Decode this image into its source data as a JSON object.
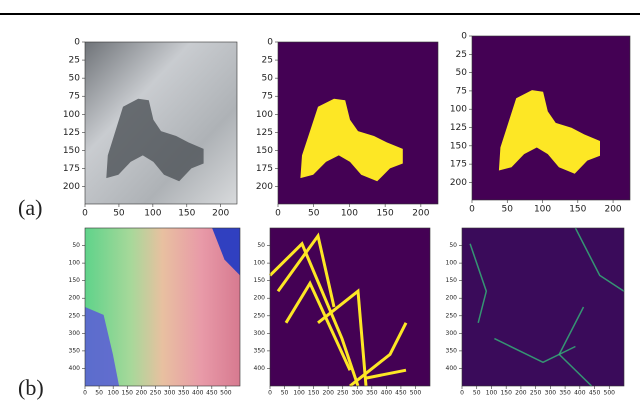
{
  "rows": [
    {
      "label": "(a)",
      "yticks": [
        0,
        25,
        50,
        75,
        100,
        125,
        150,
        175,
        200
      ],
      "xticks": [
        0,
        50,
        100,
        150,
        200
      ]
    },
    {
      "label": "(b)",
      "yticks": [
        50,
        100,
        150,
        200,
        250,
        300,
        350,
        400
      ],
      "xticks": [
        0,
        50,
        100,
        150,
        200,
        250,
        300,
        350,
        400,
        450,
        500
      ]
    }
  ]
}
